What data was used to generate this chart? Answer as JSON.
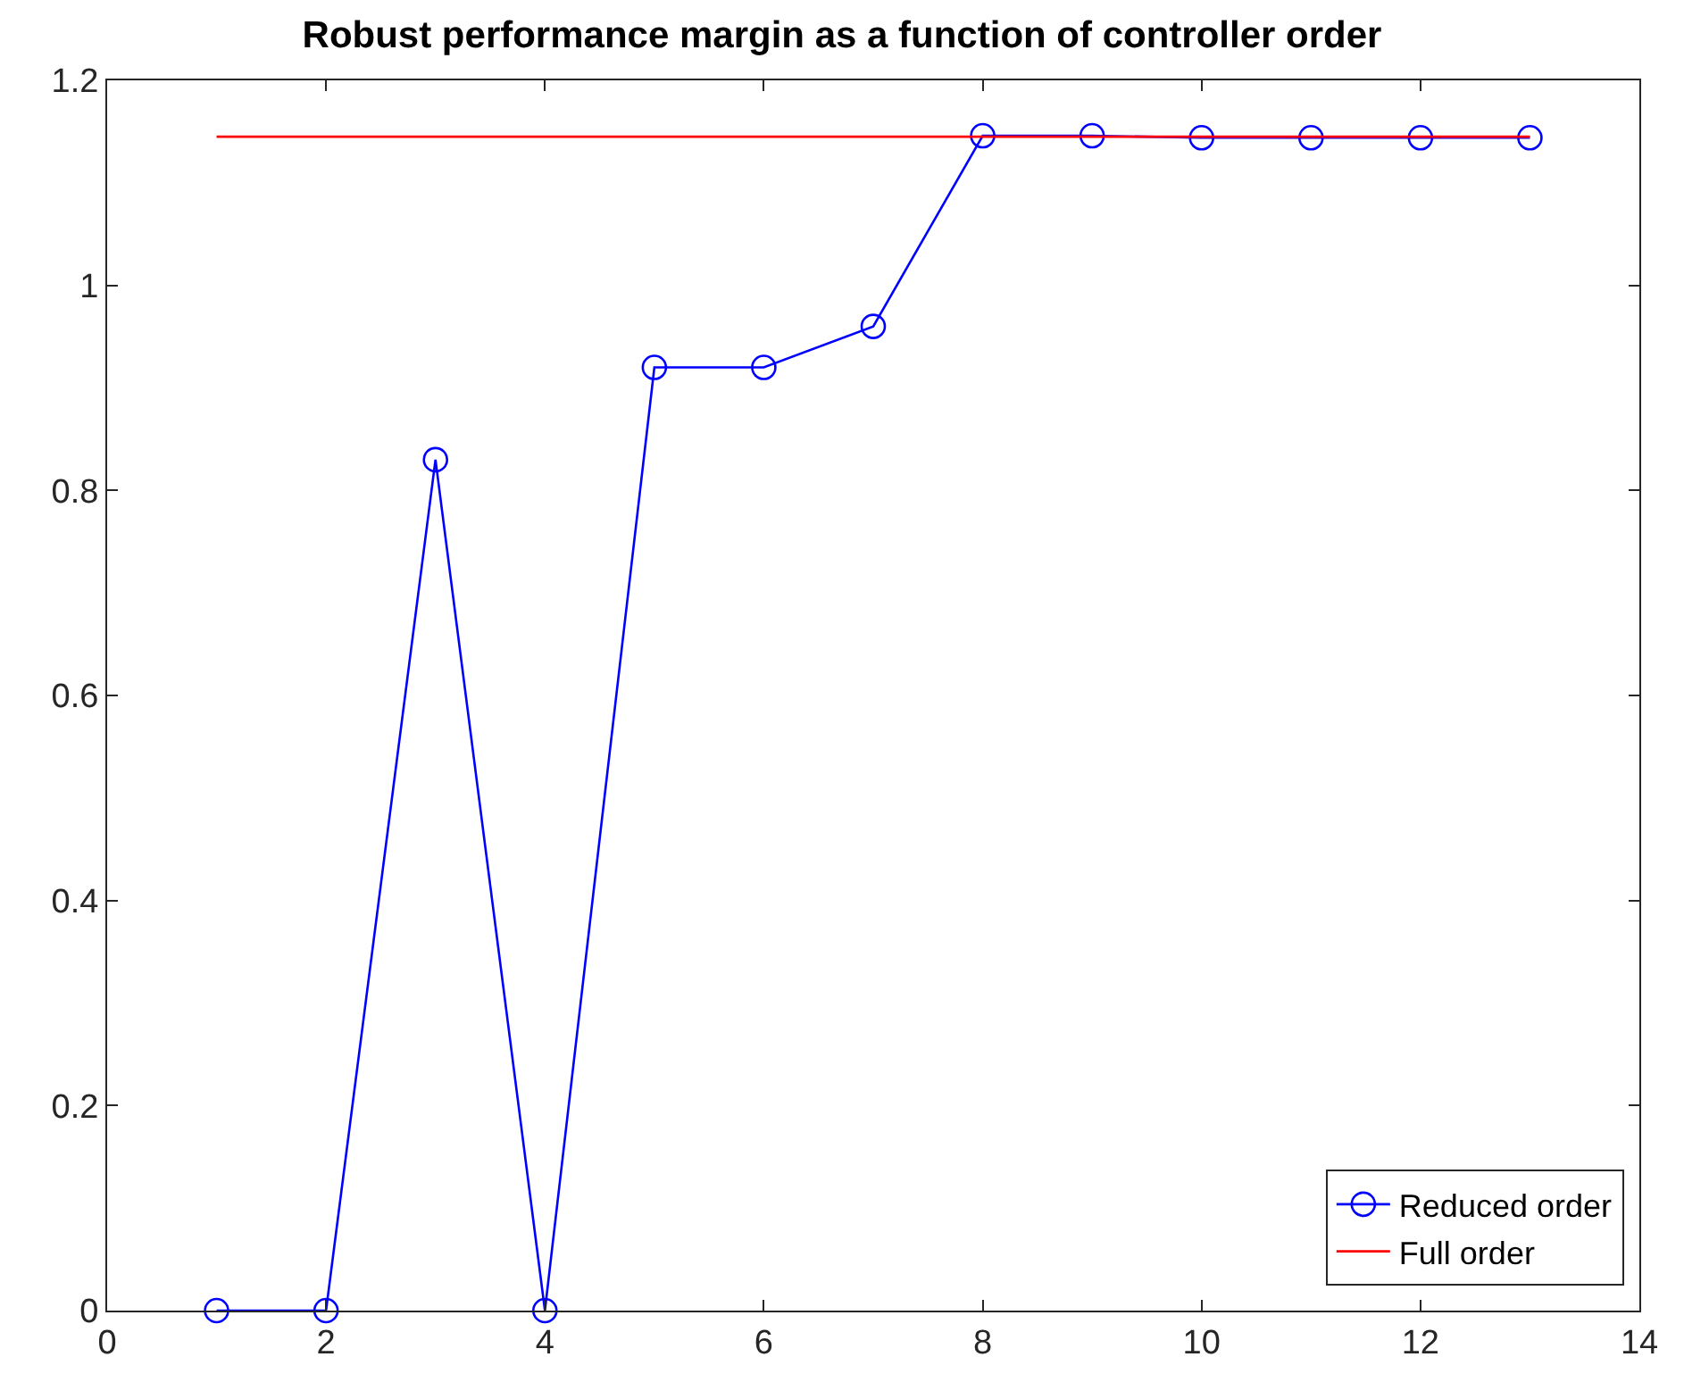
{
  "chart_data": {
    "type": "line",
    "title": "Robust performance margin as a function of controller order",
    "xlim": [
      0,
      14
    ],
    "xticks": [
      0,
      2,
      4,
      6,
      8,
      10,
      12,
      14
    ],
    "ylim": [
      0,
      1.2
    ],
    "yticks": [
      0,
      0.2,
      0.4,
      0.6,
      0.8,
      1,
      1.2
    ],
    "legend": "bottom right",
    "series": [
      {
        "name": "Reduced order",
        "color": "#0000ff",
        "marker": "circle",
        "x": [
          1,
          2,
          3,
          4,
          5,
          6,
          7,
          8,
          9,
          10,
          11,
          12,
          13
        ],
        "values": [
          0,
          0,
          0.83,
          0,
          0.92,
          0.92,
          0.96,
          1.146,
          1.146,
          1.144,
          1.144,
          1.144,
          1.144
        ]
      },
      {
        "name": "Full order",
        "color": "#ff0000",
        "marker": "none",
        "x": [
          1,
          13
        ],
        "values": [
          1.145,
          1.145
        ]
      }
    ]
  }
}
